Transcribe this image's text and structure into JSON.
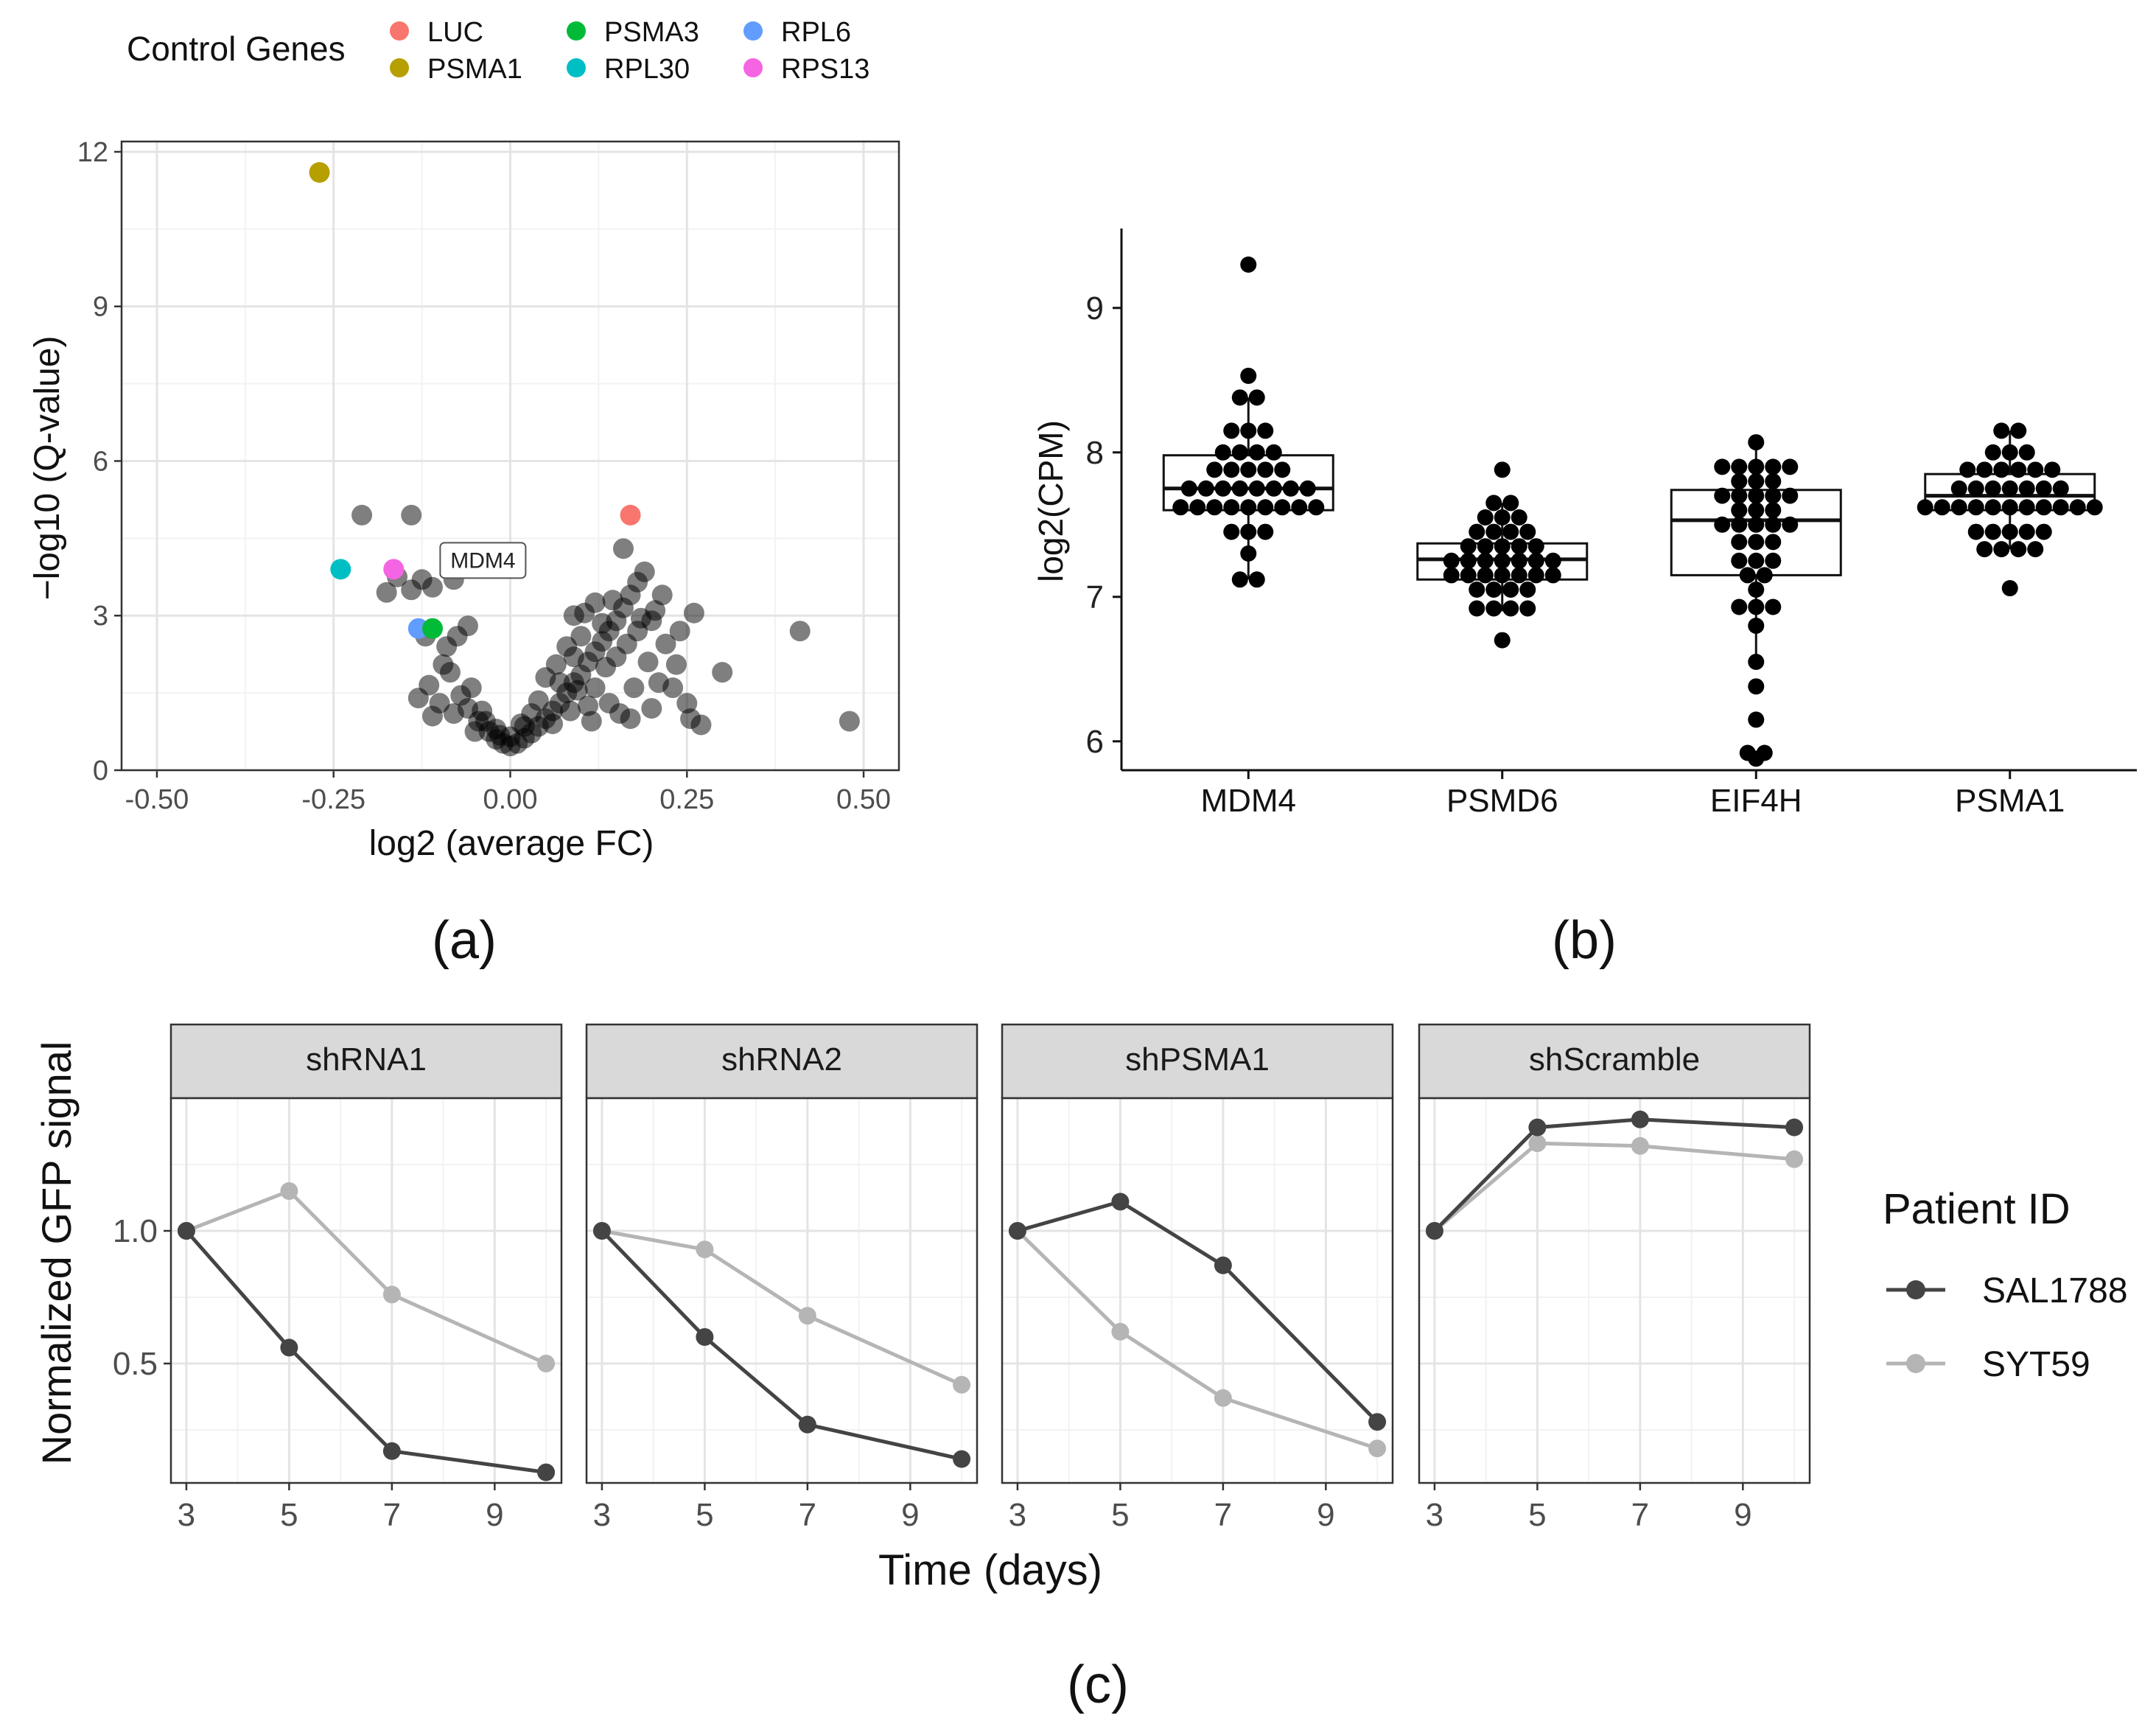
{
  "chart_data": [
    {
      "panel": "a",
      "type": "scatter",
      "caption": "(a)",
      "xlabel": "log2 (average FC)",
      "ylabel": "−log10 (Q-value)",
      "xlim": [
        -0.55,
        0.55
      ],
      "ylim": [
        0,
        12.2
      ],
      "xticks": [
        -0.5,
        -0.25,
        0.0,
        0.25,
        0.5
      ],
      "xtick_labels": [
        "-0.50",
        "-0.25",
        "0.00",
        "0.25",
        "0.50"
      ],
      "yticks": [
        0,
        3,
        6,
        9,
        12
      ],
      "ytick_labels": [
        "0",
        "3",
        "6",
        "9",
        "12"
      ],
      "grid": true,
      "legend": {
        "title": "Control Genes",
        "placement": "top",
        "entries": [
          {
            "label": "LUC",
            "color": "#F8766D"
          },
          {
            "label": "PSMA1",
            "color": "#B79F00"
          },
          {
            "label": "PSMA3",
            "color": "#00BA38"
          },
          {
            "label": "RPL30",
            "color": "#00BFC4"
          },
          {
            "label": "RPL6",
            "color": "#619CFF"
          },
          {
            "label": "RPS13",
            "color": "#F564E3"
          }
        ]
      },
      "control_points": [
        {
          "gene": "PSMA1",
          "x": -0.27,
          "y": 11.6
        },
        {
          "gene": "LUC",
          "x": 0.17,
          "y": 4.95
        },
        {
          "gene": "RPL30",
          "x": -0.24,
          "y": 3.9
        },
        {
          "gene": "RPS13",
          "x": -0.165,
          "y": 3.9
        },
        {
          "gene": "RPL6",
          "x": -0.13,
          "y": 2.75
        },
        {
          "gene": "PSMA3",
          "x": -0.11,
          "y": 2.75
        }
      ],
      "annotation": {
        "label": "MDM4",
        "x": -0.095,
        "y": 4.1
      },
      "gene_points": [
        [
          -0.21,
          4.95
        ],
        [
          -0.14,
          4.95
        ],
        [
          -0.16,
          3.75
        ],
        [
          -0.14,
          3.5
        ],
        [
          -0.11,
          3.55
        ],
        [
          -0.08,
          3.7
        ],
        [
          -0.175,
          3.45
        ],
        [
          -0.125,
          3.7
        ],
        [
          -0.06,
          2.8
        ],
        [
          -0.12,
          2.6
        ],
        [
          -0.09,
          2.4
        ],
        [
          -0.13,
          1.4
        ],
        [
          -0.11,
          1.05
        ],
        [
          -0.085,
          1.9
        ],
        [
          -0.07,
          1.45
        ],
        [
          -0.06,
          1.2
        ],
        [
          -0.045,
          0.95
        ],
        [
          -0.03,
          0.75
        ],
        [
          -0.02,
          0.6
        ],
        [
          -0.01,
          0.52
        ],
        [
          0.0,
          0.47
        ],
        [
          0.01,
          0.52
        ],
        [
          0.02,
          0.62
        ],
        [
          0.03,
          0.72
        ],
        [
          0.04,
          0.85
        ],
        [
          0.05,
          1.0
        ],
        [
          0.06,
          1.15
        ],
        [
          0.07,
          1.3
        ],
        [
          0.08,
          1.5
        ],
        [
          0.09,
          1.7
        ],
        [
          0.1,
          1.85
        ],
        [
          0.11,
          2.1
        ],
        [
          0.12,
          2.3
        ],
        [
          0.13,
          2.5
        ],
        [
          0.14,
          2.7
        ],
        [
          0.15,
          2.9
        ],
        [
          0.16,
          3.15
        ],
        [
          0.17,
          3.4
        ],
        [
          0.18,
          3.65
        ],
        [
          0.19,
          3.85
        ],
        [
          0.05,
          1.8
        ],
        [
          0.08,
          2.4
        ],
        [
          0.1,
          2.6
        ],
        [
          0.12,
          1.6
        ],
        [
          0.15,
          2.2
        ],
        [
          0.18,
          2.7
        ],
        [
          0.2,
          2.9
        ],
        [
          0.22,
          2.45
        ],
        [
          0.24,
          2.7
        ],
        [
          0.26,
          3.05
        ],
        [
          0.21,
          1.7
        ],
        [
          0.23,
          1.6
        ],
        [
          0.25,
          1.3
        ],
        [
          0.27,
          0.88
        ],
        [
          0.2,
          1.2
        ],
        [
          0.3,
          1.9
        ],
        [
          0.41,
          2.7
        ],
        [
          0.48,
          0.95
        ],
        [
          0.16,
          4.3
        ],
        [
          0.13,
          2.85
        ],
        [
          0.09,
          2.2
        ],
        [
          0.07,
          1.7
        ],
        [
          0.14,
          1.3
        ],
        [
          0.17,
          1.0
        ],
        [
          0.11,
          1.25
        ],
        [
          0.04,
          1.35
        ],
        [
          0.03,
          1.1
        ],
        [
          0.06,
          0.9
        ],
        [
          0.02,
          0.85
        ],
        [
          -0.02,
          0.8
        ],
        [
          -0.04,
          1.15
        ],
        [
          -0.05,
          0.75
        ],
        [
          -0.08,
          1.1
        ],
        [
          -0.1,
          1.3
        ],
        [
          -0.115,
          1.65
        ],
        [
          0.105,
          3.05
        ],
        [
          0.145,
          3.3
        ],
        [
          0.165,
          2.45
        ],
        [
          0.195,
          2.1
        ],
        [
          0.215,
          3.4
        ],
        [
          0.12,
          3.25
        ],
        [
          0.09,
          3.0
        ],
        [
          0.0,
          0.65
        ],
        [
          -0.015,
          0.68
        ],
        [
          0.015,
          0.9
        ],
        [
          0.085,
          1.15
        ],
        [
          0.115,
          0.95
        ],
        [
          0.175,
          1.6
        ],
        [
          0.235,
          2.05
        ],
        [
          0.185,
          2.95
        ],
        [
          0.135,
          2.0
        ],
        [
          0.095,
          1.55
        ],
        [
          0.065,
          2.05
        ],
        [
          0.155,
          1.1
        ],
        [
          0.205,
          3.1
        ],
        [
          0.255,
          1.0
        ],
        [
          -0.095,
          2.05
        ],
        [
          -0.075,
          2.6
        ],
        [
          -0.055,
          1.6
        ],
        [
          -0.035,
          0.95
        ]
      ]
    },
    {
      "panel": "b",
      "type": "box",
      "caption": "(b)",
      "xlabel": "",
      "ylabel": "log2(CPM)",
      "ylim": [
        5.8,
        9.55
      ],
      "yticks": [
        6,
        7,
        8,
        9
      ],
      "ytick_labels": [
        "6",
        "7",
        "8",
        "9"
      ],
      "grid": false,
      "categories": [
        "MDM4",
        "PSMD6",
        "EIF4H",
        "PSMA1"
      ],
      "boxes": [
        {
          "q1": 7.6,
          "median": 7.75,
          "q3": 7.98,
          "whisker_low": 7.12,
          "whisker_high": 8.38
        },
        {
          "q1": 7.12,
          "median": 7.26,
          "q3": 7.37,
          "whisker_low": 6.9,
          "whisker_high": 7.65
        },
        {
          "q1": 7.15,
          "median": 7.53,
          "q3": 7.74,
          "whisker_low": 6.55,
          "whisker_high": 8.07
        },
        {
          "q1": 7.6,
          "median": 7.7,
          "q3": 7.85,
          "whisker_low": 7.33,
          "whisker_high": 8.15
        }
      ],
      "points": [
        [
          9.3,
          8.53,
          8.38,
          8.38,
          8.15,
          8.15,
          8.15,
          8.0,
          8.0,
          8.0,
          8.0,
          7.88,
          7.88,
          7.88,
          7.88,
          7.88,
          7.75,
          7.75,
          7.75,
          7.75,
          7.75,
          7.75,
          7.75,
          7.75,
          7.62,
          7.62,
          7.62,
          7.62,
          7.62,
          7.62,
          7.62,
          7.62,
          7.62,
          7.45,
          7.45,
          7.45,
          7.3,
          7.12,
          7.12
        ],
        [
          7.88,
          7.65,
          7.65,
          7.55,
          7.55,
          7.55,
          7.45,
          7.45,
          7.45,
          7.45,
          7.35,
          7.35,
          7.35,
          7.35,
          7.35,
          7.25,
          7.25,
          7.25,
          7.25,
          7.25,
          7.25,
          7.25,
          7.15,
          7.15,
          7.15,
          7.15,
          7.15,
          7.15,
          7.15,
          7.05,
          7.05,
          7.05,
          7.05,
          6.92,
          6.92,
          6.92,
          6.92,
          6.7
        ],
        [
          8.07,
          7.9,
          7.9,
          7.9,
          7.9,
          7.9,
          7.8,
          7.8,
          7.8,
          7.7,
          7.7,
          7.7,
          7.7,
          7.7,
          7.6,
          7.6,
          7.6,
          7.5,
          7.5,
          7.5,
          7.5,
          7.5,
          7.38,
          7.38,
          7.38,
          7.25,
          7.25,
          7.25,
          7.15,
          7.15,
          7.05,
          6.93,
          6.93,
          6.93,
          6.8,
          6.55,
          6.38,
          6.15,
          5.92,
          5.92,
          5.88
        ],
        [
          8.15,
          8.15,
          8.0,
          8.0,
          8.0,
          7.88,
          7.88,
          7.88,
          7.88,
          7.88,
          7.88,
          7.75,
          7.75,
          7.75,
          7.75,
          7.75,
          7.75,
          7.75,
          7.62,
          7.62,
          7.62,
          7.62,
          7.62,
          7.62,
          7.62,
          7.62,
          7.62,
          7.62,
          7.62,
          7.45,
          7.45,
          7.45,
          7.45,
          7.45,
          7.33,
          7.33,
          7.33,
          7.33,
          7.06
        ]
      ]
    },
    {
      "panel": "c",
      "type": "line",
      "caption": "(c)",
      "xlabel": "Time (days)",
      "ylabel": "Normalized GFP signal",
      "x": [
        3,
        5,
        7,
        10
      ],
      "xticks": [
        3,
        5,
        7,
        9
      ],
      "xtick_labels": [
        "3",
        "5",
        "7",
        "9"
      ],
      "yticks": [
        0.5,
        1.0
      ],
      "ytick_labels": [
        "0.5",
        "1.0"
      ],
      "xlim": [
        2.7,
        10.3
      ],
      "ylim": [
        0.05,
        1.5
      ],
      "grid": true,
      "legend": {
        "title": "Patient ID",
        "placement": "right",
        "entries": [
          {
            "label": "SAL1788",
            "color": "#444444"
          },
          {
            "label": "SYT59",
            "color": "#b5b5b5"
          }
        ]
      },
      "facets": [
        {
          "label": "shRNA1",
          "series": [
            {
              "name": "SAL1788",
              "values": [
                1.0,
                0.56,
                0.17,
                0.09
              ]
            },
            {
              "name": "SYT59",
              "values": [
                1.0,
                1.15,
                0.76,
                0.5
              ]
            }
          ]
        },
        {
          "label": "shRNA2",
          "series": [
            {
              "name": "SAL1788",
              "values": [
                1.0,
                0.6,
                0.27,
                0.14
              ]
            },
            {
              "name": "SYT59",
              "values": [
                1.0,
                0.93,
                0.68,
                0.42
              ]
            }
          ]
        },
        {
          "label": "shPSMA1",
          "series": [
            {
              "name": "SAL1788",
              "values": [
                1.0,
                1.11,
                0.87,
                0.28
              ]
            },
            {
              "name": "SYT59",
              "values": [
                1.0,
                0.62,
                0.37,
                0.18
              ]
            }
          ]
        },
        {
          "label": "shScramble",
          "series": [
            {
              "name": "SAL1788",
              "values": [
                1.0,
                1.39,
                1.42,
                1.39
              ]
            },
            {
              "name": "SYT59",
              "values": [
                1.0,
                1.33,
                1.32,
                1.27
              ]
            }
          ]
        }
      ]
    }
  ]
}
